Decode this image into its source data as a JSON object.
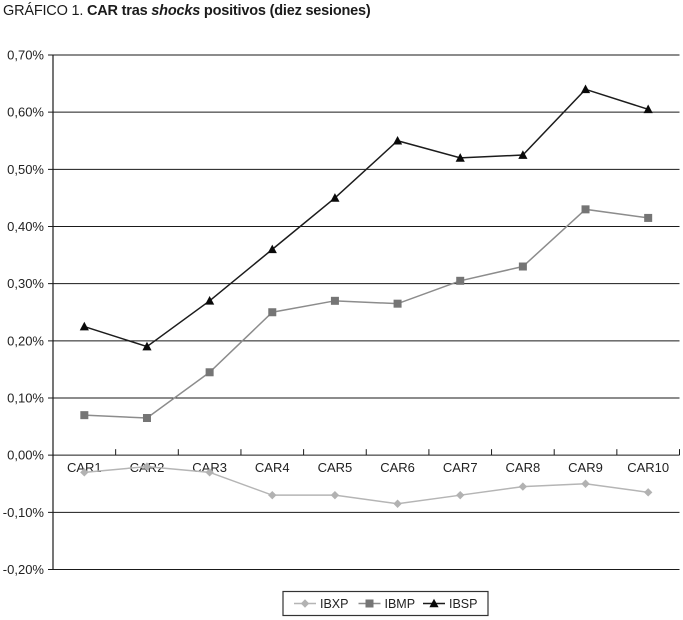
{
  "title": {
    "prefix": "GRÁFICO 1. ",
    "main_bold": "CAR tras ",
    "italic_word": "shocks",
    "suffix_bold": " positivos (diez sesiones)",
    "full": "GRÁFICO 1. CAR tras shocks positivos (diez sesiones)"
  },
  "chart_data": {
    "type": "line",
    "title": "GRÁFICO 1. CAR tras shocks positivos (diez sesiones)",
    "categories": [
      "CAR1",
      "CAR2",
      "CAR3",
      "CAR4",
      "CAR5",
      "CAR6",
      "CAR7",
      "CAR8",
      "CAR9",
      "CAR10"
    ],
    "series": [
      {
        "name": "IBXP",
        "marker": "diamond",
        "line_color": "#b5b5b5",
        "marker_color": "#b2b2b2",
        "values": [
          -0.03,
          -0.02,
          -0.03,
          -0.07,
          -0.07,
          -0.085,
          -0.07,
          -0.055,
          -0.05,
          -0.065
        ]
      },
      {
        "name": "IBMP",
        "marker": "square",
        "line_color": "#8c8c8c",
        "marker_color": "#757575",
        "values": [
          0.07,
          0.065,
          0.145,
          0.25,
          0.27,
          0.265,
          0.305,
          0.33,
          0.43,
          0.415
        ]
      },
      {
        "name": "IBSP",
        "marker": "triangle",
        "line_color": "#1c1c1c",
        "marker_color": "#0a0a0a",
        "values": [
          0.225,
          0.19,
          0.27,
          0.36,
          0.45,
          0.55,
          0.52,
          0.525,
          0.64,
          0.605
        ]
      }
    ],
    "y_axis": {
      "min": -0.2,
      "max": 0.7,
      "step": 0.1,
      "unit": "%",
      "decimal_separator": ",",
      "tick_labels": [
        "0,70%",
        "0,60%",
        "0,50%",
        "0,40%",
        "0,30%",
        "0,20%",
        "0,10%",
        "0,00%",
        "-0,10%",
        "-0,20%"
      ]
    },
    "x_axis": {
      "labels_position": "below zero line",
      "tick_marks": "category boundaries"
    },
    "legend": {
      "position": "bottom-center",
      "bordered": true,
      "entries": [
        "IBXP",
        "IBMP",
        "IBSP"
      ]
    },
    "grid": true,
    "ylim": [
      -0.2,
      0.7
    ]
  },
  "colors": {
    "grid": "#1a1a1a",
    "axis": "#1a1a1a",
    "text": "#222222",
    "background": "#ffffff",
    "legend_border": "#333333"
  }
}
